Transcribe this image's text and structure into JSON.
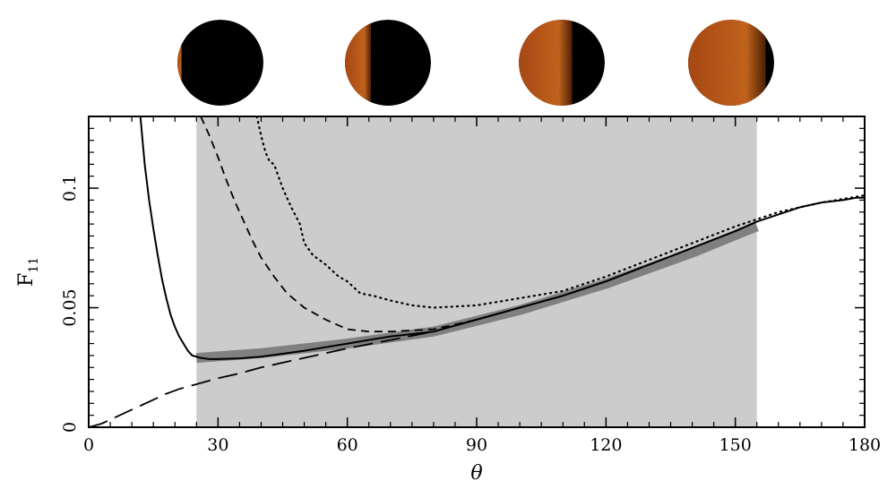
{
  "chart_data": {
    "type": "line",
    "xlabel": "θ",
    "ylabel": "F",
    "ylabel_sub": "11",
    "xlim": [
      0,
      180
    ],
    "ylim": [
      0,
      0.13
    ],
    "x_ticks": [
      0,
      30,
      60,
      90,
      120,
      150,
      180
    ],
    "x_tick_labels": [
      "0",
      "30",
      "60",
      "90",
      "120",
      "150",
      "180"
    ],
    "y_ticks": [
      0,
      0.05,
      0.1
    ],
    "y_tick_labels": [
      "0",
      "0.05",
      "0.1"
    ],
    "grid": false,
    "shaded_region": {
      "x": [
        25,
        155
      ],
      "color": "#cccccc"
    },
    "series": [
      {
        "style": "thick-band",
        "color": "#808080",
        "x": [
          25,
          40,
          60,
          80,
          100,
          120,
          140,
          155
        ],
        "y": [
          0.029,
          0.031,
          0.035,
          0.04,
          0.049,
          0.06,
          0.073,
          0.084
        ]
      },
      {
        "style": "solid",
        "color": "#000000",
        "x": [
          12,
          13,
          14,
          15,
          16,
          17,
          18,
          19,
          20,
          21,
          22,
          23,
          24,
          26,
          28,
          30,
          35,
          40,
          50,
          60,
          70,
          80,
          90,
          100,
          110,
          120,
          130,
          140,
          150,
          155,
          160,
          165,
          170,
          175,
          178,
          180
        ],
        "y": [
          0.13,
          0.11,
          0.095,
          0.083,
          0.072,
          0.062,
          0.054,
          0.047,
          0.042,
          0.038,
          0.035,
          0.032,
          0.03,
          0.029,
          0.0285,
          0.0285,
          0.0288,
          0.0295,
          0.032,
          0.035,
          0.038,
          0.04,
          0.045,
          0.05,
          0.055,
          0.061,
          0.068,
          0.075,
          0.082,
          0.086,
          0.089,
          0.092,
          0.094,
          0.095,
          0.096,
          0.096
        ]
      },
      {
        "style": "short-dash",
        "color": "#000000",
        "x": [
          26,
          28,
          30,
          32,
          34,
          36,
          38,
          40,
          43,
          46,
          50,
          55,
          60,
          65,
          70,
          80,
          90,
          100,
          110,
          120,
          130,
          140,
          150,
          155
        ],
        "y": [
          0.13,
          0.122,
          0.113,
          0.103,
          0.094,
          0.086,
          0.078,
          0.071,
          0.063,
          0.056,
          0.05,
          0.045,
          0.041,
          0.04,
          0.04,
          0.041,
          0.045,
          0.05,
          0.055,
          0.061,
          0.068,
          0.075,
          0.082,
          0.086
        ]
      },
      {
        "style": "dotted",
        "color": "#000000",
        "x": [
          39,
          40,
          41,
          42,
          43,
          45,
          47,
          49,
          50,
          52,
          55,
          58,
          60,
          63,
          66,
          70,
          75,
          80,
          90,
          100,
          110,
          120,
          130,
          140,
          150,
          160,
          170,
          180
        ],
        "y": [
          0.13,
          0.122,
          0.115,
          0.111,
          0.11,
          0.1,
          0.092,
          0.085,
          0.077,
          0.072,
          0.068,
          0.063,
          0.061,
          0.056,
          0.055,
          0.053,
          0.051,
          0.05,
          0.051,
          0.054,
          0.057,
          0.063,
          0.07,
          0.077,
          0.084,
          0.09,
          0.094,
          0.097
        ]
      },
      {
        "style": "long-dash",
        "color": "#000000",
        "x": [
          0,
          3,
          6,
          9,
          12,
          15,
          18,
          21,
          25,
          30,
          35,
          40,
          50,
          60,
          70,
          80,
          90,
          100,
          110,
          120,
          130,
          140,
          150,
          155
        ],
        "y": [
          0,
          0.0015,
          0.004,
          0.0065,
          0.009,
          0.0115,
          0.014,
          0.016,
          0.018,
          0.0205,
          0.0225,
          0.025,
          0.029,
          0.033,
          0.0365,
          0.04,
          0.045,
          0.05,
          0.055,
          0.061,
          0.068,
          0.075,
          0.082,
          0.086
        ]
      }
    ],
    "phase_images": [
      {
        "name": "phase-image-1",
        "lit_fraction": 0.05
      },
      {
        "name": "phase-image-2",
        "lit_fraction": 0.3
      },
      {
        "name": "phase-image-3",
        "lit_fraction": 0.62
      },
      {
        "name": "phase-image-4",
        "lit_fraction": 0.9
      }
    ]
  },
  "colors": {
    "background": "#ffffff",
    "axis": "#000000",
    "shade": "#cccccc",
    "band": "#808080",
    "planet_lit": "#e07a28",
    "planet_dark": "#000000"
  }
}
